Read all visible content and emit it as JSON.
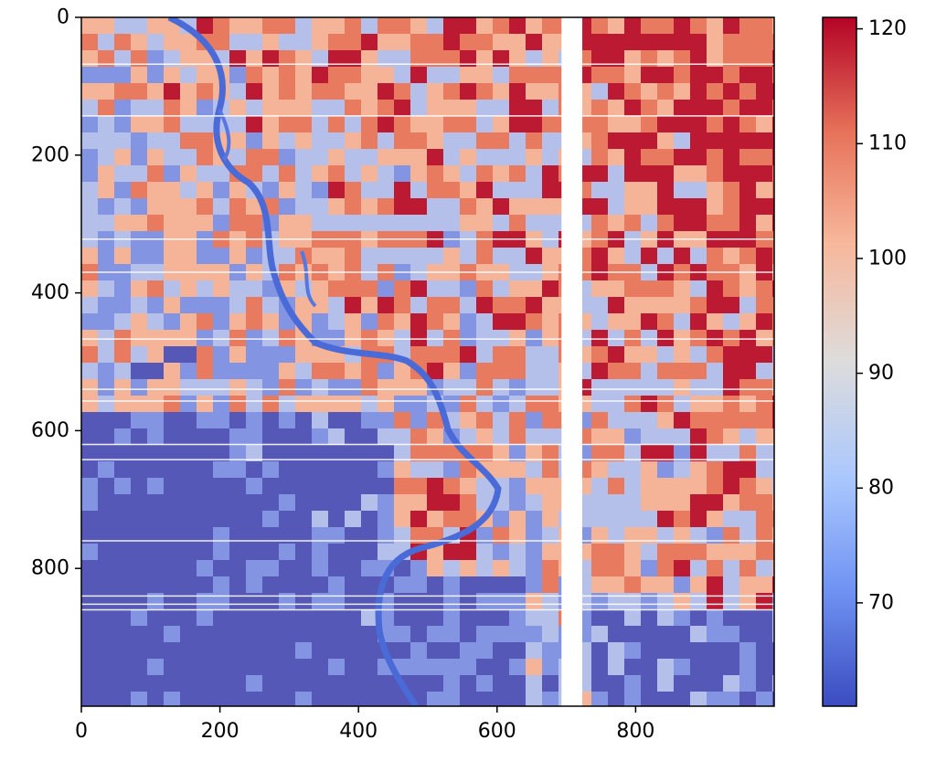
{
  "chart_data": {
    "type": "heatmap",
    "title": "",
    "xlabel": "",
    "ylabel": "",
    "colormap": "coolwarm",
    "x_range": [
      0,
      1000
    ],
    "y_range": [
      0,
      1000
    ],
    "y_inverted": true,
    "x_ticks": [
      "0",
      "200",
      "400",
      "600",
      "800"
    ],
    "x_tick_values": [
      0,
      200,
      400,
      600,
      800
    ],
    "y_ticks": [
      "0",
      "200",
      "400",
      "600",
      "800"
    ],
    "y_tick_values": [
      0,
      200,
      400,
      600,
      800
    ],
    "colorbar": {
      "range": [
        61,
        121
      ],
      "ticks": [
        "70",
        "80",
        "90",
        "100",
        "110",
        "120"
      ],
      "tick_values": [
        70,
        80,
        90,
        100,
        110,
        120
      ],
      "colors": [
        "#3b4cc0",
        "#7093f3",
        "#aac7fd",
        "#dddcdc",
        "#f7b89c",
        "#e7745b",
        "#b40426"
      ]
    },
    "no_data_stripe_x": [
      693,
      723
    ],
    "grid": false
  }
}
